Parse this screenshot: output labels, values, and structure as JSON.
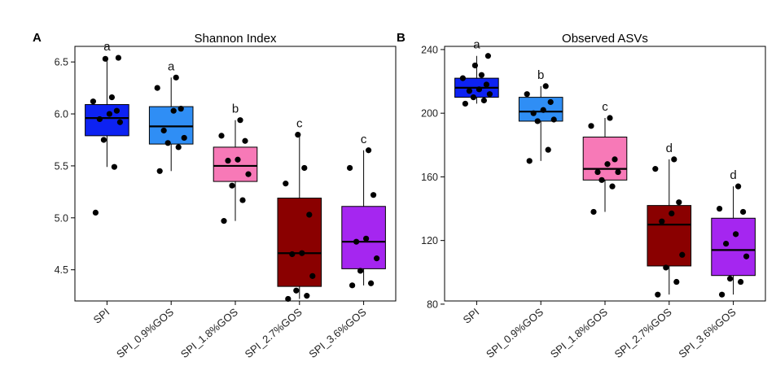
{
  "chart_data": [
    {
      "type": "box",
      "panel": "A",
      "title": "Shannon Index",
      "categories": [
        "SPI",
        "SPI_0.9%GOS",
        "SPI_1.8%GOS",
        "SPI_2.7%GOS",
        "SPI_3.6%GOS"
      ],
      "colors": [
        "#0d22f2",
        "#2f8ef5",
        "#f779b7",
        "#8a0000",
        "#a526f0"
      ],
      "ylim": [
        4.2,
        6.65
      ],
      "yticks": [
        4.5,
        5.0,
        5.5,
        6.0,
        6.5
      ],
      "ytick_labels": [
        "4.5",
        "5.0",
        "5.5",
        "6.0",
        "6.5"
      ],
      "grid": false,
      "boxes": [
        {
          "q1": 5.79,
          "median": 5.96,
          "q3": 6.09,
          "whisker_low": 5.49,
          "whisker_high": 6.54,
          "letter": "a"
        },
        {
          "q1": 5.71,
          "median": 5.88,
          "q3": 6.07,
          "whisker_low": 5.45,
          "whisker_high": 6.35,
          "letter": "a"
        },
        {
          "q1": 5.35,
          "median": 5.5,
          "q3": 5.68,
          "whisker_low": 4.97,
          "whisker_high": 5.94,
          "letter": "b"
        },
        {
          "q1": 4.34,
          "median": 4.66,
          "q3": 5.19,
          "whisker_low": 4.22,
          "whisker_high": 5.8,
          "letter": "c"
        },
        {
          "q1": 4.51,
          "median": 4.77,
          "q3": 5.11,
          "whisker_low": 4.35,
          "whisker_high": 5.65,
          "letter": "c"
        }
      ],
      "points": [
        [
          5.05,
          5.49,
          5.75,
          5.92,
          5.95,
          6.0,
          6.03,
          6.12,
          6.16,
          6.53,
          6.54
        ],
        [
          5.45,
          5.68,
          5.72,
          5.77,
          5.84,
          6.03,
          6.05,
          6.25,
          6.35
        ],
        [
          4.97,
          5.17,
          5.31,
          5.42,
          5.55,
          5.56,
          5.74,
          5.79,
          5.94
        ],
        [
          4.22,
          4.25,
          4.3,
          4.44,
          4.65,
          4.66,
          5.03,
          5.33,
          5.48,
          5.8
        ],
        [
          4.35,
          4.37,
          4.49,
          4.61,
          4.77,
          4.8,
          5.22,
          5.48,
          5.65
        ]
      ]
    },
    {
      "type": "box",
      "panel": "B",
      "title": "Observed ASVs",
      "categories": [
        "SPI",
        "SPI_0.9%GOS",
        "SPI_1.8%GOS",
        "SPI_2.7%GOS",
        "SPI_3.6%GOS"
      ],
      "colors": [
        "#0d22f2",
        "#2f8ef5",
        "#f779b7",
        "#8a0000",
        "#a526f0"
      ],
      "ylim": [
        82,
        242
      ],
      "yticks": [
        80,
        120,
        160,
        200,
        240
      ],
      "ytick_labels": [
        "80",
        "120",
        "160",
        "200",
        "240"
      ],
      "grid": false,
      "boxes": [
        {
          "q1": 210,
          "median": 216,
          "q3": 222,
          "whisker_low": 206,
          "whisker_high": 236,
          "letter": "a"
        },
        {
          "q1": 195,
          "median": 201,
          "q3": 210,
          "whisker_low": 170,
          "whisker_high": 217,
          "letter": "b"
        },
        {
          "q1": 158,
          "median": 165,
          "q3": 185,
          "whisker_low": 138,
          "whisker_high": 197,
          "letter": "c"
        },
        {
          "q1": 104,
          "median": 130,
          "q3": 142,
          "whisker_low": 86,
          "whisker_high": 171,
          "letter": "d"
        },
        {
          "q1": 98,
          "median": 114,
          "q3": 134,
          "whisker_low": 86,
          "whisker_high": 154,
          "letter": "d"
        }
      ],
      "points": [
        [
          206,
          208,
          210,
          212,
          214,
          215,
          218,
          222,
          224,
          230,
          236
        ],
        [
          170,
          177,
          195,
          196,
          200,
          202,
          207,
          212,
          217
        ],
        [
          138,
          154,
          158,
          163,
          163,
          168,
          171,
          192,
          197
        ],
        [
          86,
          94,
          103,
          111,
          132,
          137,
          144,
          165,
          171
        ],
        [
          86,
          94,
          96,
          110,
          118,
          124,
          138,
          140,
          154
        ]
      ]
    }
  ]
}
